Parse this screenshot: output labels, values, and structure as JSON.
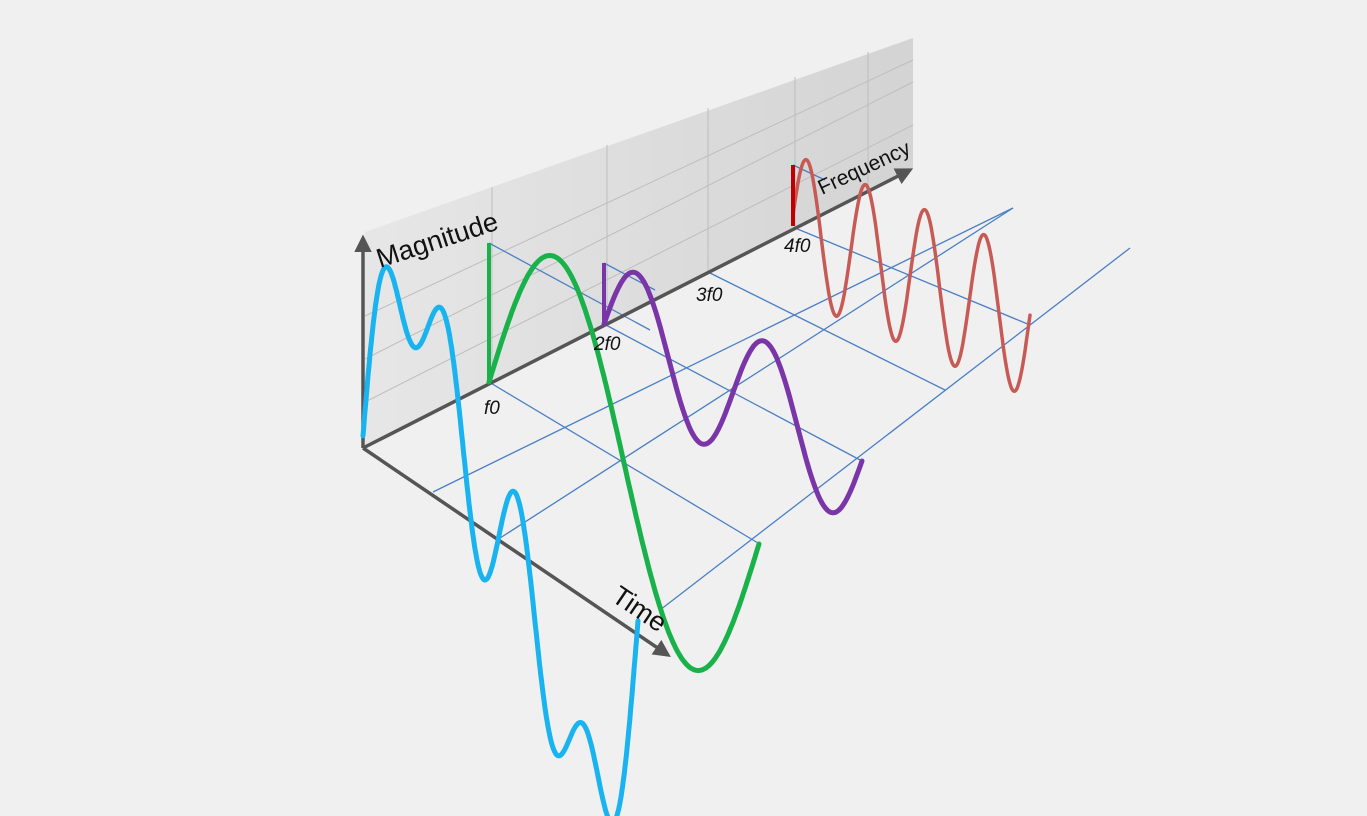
{
  "axes": {
    "magnitude": "Magnitude",
    "frequency": "Frequency",
    "time": "Time"
  },
  "frequency_ticks": [
    "f0",
    "2f0",
    "3f0",
    "4f0"
  ],
  "colors": {
    "background": "#f0f0f0",
    "back_panel": "#d6d6d6",
    "axis": "#555555",
    "grid": "#4a7fc5",
    "composite": "#19b4f0",
    "f0": "#19b24a",
    "2f0": "#7a35a8",
    "3f0": "#7a35a8",
    "4f0": "#c85a55",
    "4f0_bar": "#c00000"
  },
  "signal": {
    "description_visible": false,
    "components": [
      {
        "id": "f0",
        "harmonic": 1,
        "relative_amplitude": 1.0
      },
      {
        "id": "2f0",
        "harmonic": 2,
        "relative_amplitude": 0.45
      },
      {
        "id": "4f0",
        "harmonic": 4,
        "relative_amplitude": 0.45
      }
    ]
  }
}
